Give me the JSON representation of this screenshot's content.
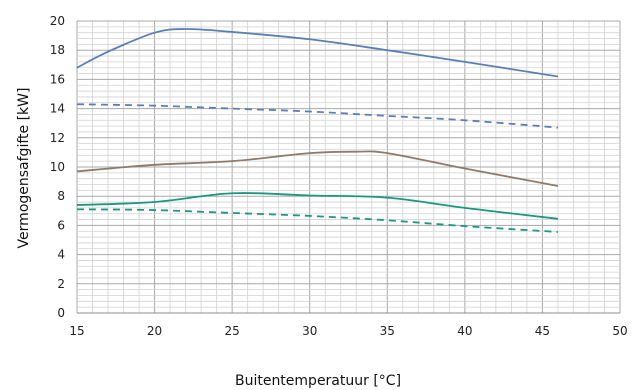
{
  "chart_data": {
    "type": "line",
    "xlabel": "Buitentemperatuur [°C]",
    "ylabel": "Vermogensafgifte [kW]",
    "xlim": [
      15,
      50
    ],
    "ylim": [
      0,
      20
    ],
    "x_ticks": [
      "15",
      "20",
      "25",
      "30",
      "35",
      "40",
      "45",
      "50"
    ],
    "y_ticks": [
      "0",
      "2",
      "4",
      "6",
      "8",
      "10",
      "12",
      "14",
      "16",
      "18",
      "20"
    ],
    "x_major_step": 5,
    "y_major_step": 2,
    "minor_divisions": 5,
    "grid": true,
    "legend": false,
    "series": [
      {
        "color": "#5b7fb5",
        "dash": "solid",
        "x": [
          15,
          17,
          20,
          22,
          25,
          30,
          35,
          40,
          46
        ],
        "y": [
          16.8,
          17.9,
          19.2,
          19.45,
          19.25,
          18.75,
          18.0,
          17.2,
          16.2
        ]
      },
      {
        "color": "#5b7fb5",
        "dash": "dashed",
        "x": [
          15,
          20,
          25,
          30,
          35,
          40,
          46
        ],
        "y": [
          14.3,
          14.2,
          14.0,
          13.8,
          13.5,
          13.2,
          12.7
        ]
      },
      {
        "color": "#8c7b6b",
        "dash": "solid",
        "x": [
          15,
          20,
          25,
          30,
          33,
          35,
          40,
          46
        ],
        "y": [
          9.7,
          10.15,
          10.4,
          10.95,
          11.05,
          10.95,
          9.9,
          8.7
        ]
      },
      {
        "color": "#1a9880",
        "dash": "solid",
        "x": [
          15,
          20,
          25,
          30,
          35,
          40,
          46
        ],
        "y": [
          7.4,
          7.6,
          8.2,
          8.05,
          7.9,
          7.2,
          6.45
        ]
      },
      {
        "color": "#1a9880",
        "dash": "dashed",
        "x": [
          15,
          20,
          25,
          30,
          35,
          40,
          46
        ],
        "y": [
          7.1,
          7.05,
          6.85,
          6.65,
          6.35,
          5.95,
          5.55
        ]
      }
    ]
  }
}
